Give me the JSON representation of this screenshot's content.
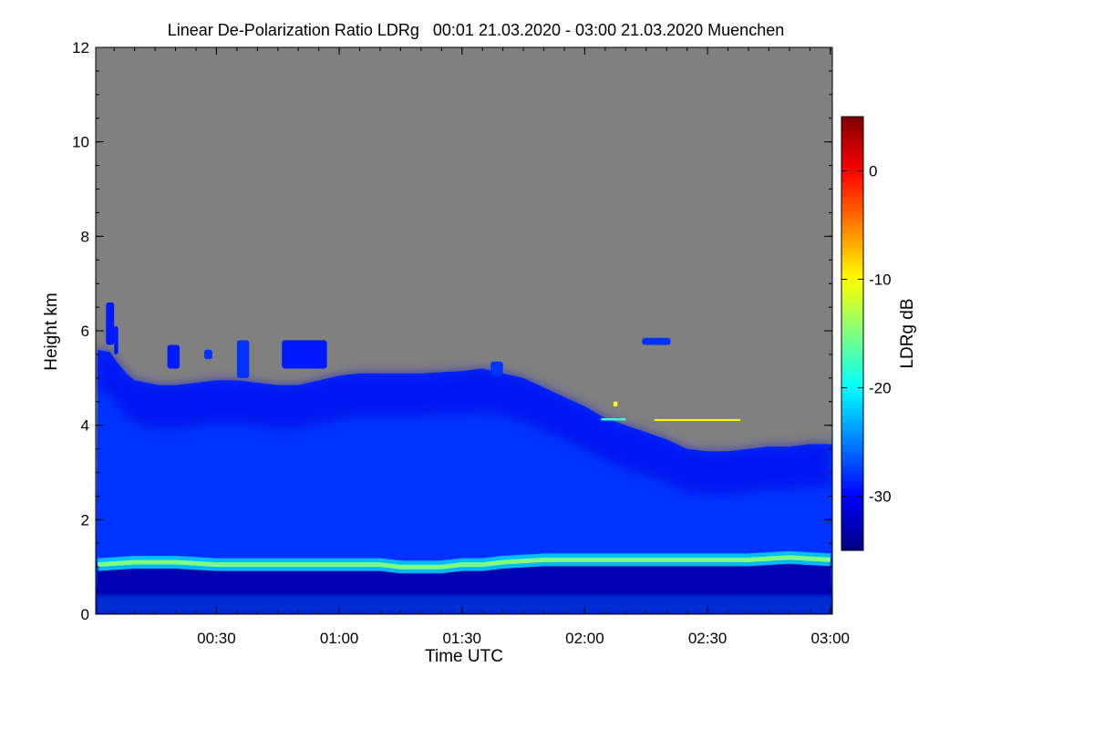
{
  "chart_data": {
    "type": "heatmap",
    "title": "Linear De-Polarization Ratio LDRg   00:01 21.03.2020 - 03:00 21.03.2020 Muenchen",
    "xlabel": "Time UTC",
    "ylabel": "Height km",
    "colorbar_label": "LDRg dB",
    "x_range_minutes": [
      1,
      180
    ],
    "ylim": [
      0,
      12
    ],
    "x_ticks": [
      {
        "minute": 30,
        "label": "00:30"
      },
      {
        "minute": 60,
        "label": "01:00"
      },
      {
        "minute": 90,
        "label": "01:30"
      },
      {
        "minute": 120,
        "label": "02:00"
      },
      {
        "minute": 150,
        "label": "02:30"
      },
      {
        "minute": 180,
        "label": "03:00"
      }
    ],
    "y_ticks": [
      {
        "value": 0,
        "label": "0"
      },
      {
        "value": 2,
        "label": "2"
      },
      {
        "value": 4,
        "label": "4"
      },
      {
        "value": 6,
        "label": "6"
      },
      {
        "value": 8,
        "label": "8"
      },
      {
        "value": 10,
        "label": "10"
      },
      {
        "value": 12,
        "label": "12"
      }
    ],
    "colorbar_range": [
      -35,
      5
    ],
    "colorbar_ticks": [
      {
        "value": 0,
        "label": "0"
      },
      {
        "value": -10,
        "label": "-10"
      },
      {
        "value": -20,
        "label": "-20"
      },
      {
        "value": -30,
        "label": "-30"
      }
    ],
    "colormap": [
      "#00007f",
      "#0000ff",
      "#007fff",
      "#00ffff",
      "#7fff7f",
      "#ffff00",
      "#ff7f00",
      "#ff0000",
      "#7f0000"
    ],
    "no_data_color": "#808080",
    "signal_top_km": [
      [
        1,
        5.6
      ],
      [
        4,
        5.55
      ],
      [
        6,
        5.3
      ],
      [
        8,
        5.1
      ],
      [
        10,
        4.95
      ],
      [
        13,
        4.9
      ],
      [
        16,
        4.85
      ],
      [
        20,
        4.85
      ],
      [
        25,
        4.9
      ],
      [
        30,
        4.95
      ],
      [
        35,
        4.95
      ],
      [
        40,
        4.9
      ],
      [
        45,
        4.85
      ],
      [
        50,
        4.85
      ],
      [
        55,
        4.95
      ],
      [
        60,
        5.05
      ],
      [
        65,
        5.1
      ],
      [
        70,
        5.1
      ],
      [
        80,
        5.1
      ],
      [
        90,
        5.15
      ],
      [
        95,
        5.2
      ],
      [
        100,
        5.1
      ],
      [
        105,
        5.0
      ],
      [
        110,
        4.8
      ],
      [
        115,
        4.6
      ],
      [
        120,
        4.4
      ],
      [
        125,
        4.15
      ],
      [
        130,
        4.0
      ],
      [
        135,
        3.85
      ],
      [
        140,
        3.7
      ],
      [
        145,
        3.5
      ],
      [
        150,
        3.45
      ],
      [
        155,
        3.45
      ],
      [
        160,
        3.5
      ],
      [
        165,
        3.55
      ],
      [
        170,
        3.55
      ],
      [
        175,
        3.6
      ],
      [
        180,
        3.6
      ]
    ],
    "boundary_layer_km": [
      [
        1,
        1.05
      ],
      [
        10,
        1.1
      ],
      [
        20,
        1.1
      ],
      [
        30,
        1.05
      ],
      [
        40,
        1.05
      ],
      [
        50,
        1.05
      ],
      [
        60,
        1.05
      ],
      [
        70,
        1.05
      ],
      [
        75,
        1.0
      ],
      [
        80,
        1.0
      ],
      [
        85,
        1.0
      ],
      [
        90,
        1.05
      ],
      [
        95,
        1.05
      ],
      [
        100,
        1.1
      ],
      [
        110,
        1.15
      ],
      [
        120,
        1.15
      ],
      [
        130,
        1.15
      ],
      [
        140,
        1.15
      ],
      [
        150,
        1.15
      ],
      [
        160,
        1.15
      ],
      [
        170,
        1.2
      ],
      [
        180,
        1.15
      ]
    ],
    "regions": [
      {
        "kind": "clear_air_background",
        "ldr_db": -28
      },
      {
        "kind": "upper_cloud_layer",
        "ldr_db": -31
      },
      {
        "kind": "low_dense_layer_0_to_1km",
        "ldr_db": -33
      },
      {
        "kind": "surface_layer_0_to_0_4km",
        "ldr_db": -26
      },
      {
        "kind": "boundary_layer_top_max",
        "ldr_db": -15
      }
    ],
    "cloud_patches": [
      {
        "t_start": 3,
        "t_end": 5,
        "h_bottom": 5.7,
        "h_top": 6.6,
        "ldr_db": -29
      },
      {
        "t_start": 5,
        "t_end": 6,
        "h_bottom": 5.5,
        "h_top": 6.1,
        "ldr_db": -29
      },
      {
        "t_start": 18,
        "t_end": 21,
        "h_bottom": 5.2,
        "h_top": 5.7,
        "ldr_db": -29
      },
      {
        "t_start": 27,
        "t_end": 29,
        "h_bottom": 5.4,
        "h_top": 5.6,
        "ldr_db": -28
      },
      {
        "t_start": 35,
        "t_end": 38,
        "h_bottom": 5.0,
        "h_top": 5.8,
        "ldr_db": -28
      },
      {
        "t_start": 46,
        "t_end": 57,
        "h_bottom": 5.2,
        "h_top": 5.8,
        "ldr_db": -29
      },
      {
        "t_start": 97,
        "t_end": 100,
        "h_bottom": 5.05,
        "h_top": 5.35,
        "ldr_db": -28
      },
      {
        "t_start": 134,
        "t_end": 141,
        "h_bottom": 5.7,
        "h_top": 5.85,
        "ldr_db": -28
      }
    ],
    "highlight_patches": [
      {
        "t_start": 124,
        "t_end": 130,
        "h_bottom": 4.1,
        "h_top": 4.15,
        "ldr_db": -18
      },
      {
        "t_start": 127,
        "t_end": 128,
        "h_bottom": 4.4,
        "h_top": 4.5,
        "ldr_db": -10
      },
      {
        "t_start": 137,
        "t_end": 158,
        "h_bottom": 4.1,
        "h_top": 4.13,
        "ldr_db": -10
      }
    ]
  }
}
